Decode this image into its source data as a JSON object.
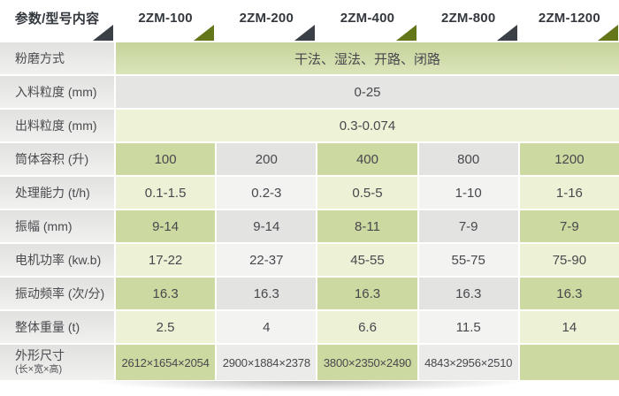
{
  "table": {
    "header": {
      "param_label": "参数/型号内容",
      "models": [
        "2ZM-100",
        "2ZM-200",
        "2ZM-400",
        "2ZM-800",
        "2ZM-1200"
      ]
    },
    "span_rows": {
      "grinding": {
        "label": "粉磨方式",
        "value": "干法、湿法、开路、闭路"
      },
      "feed_size": {
        "label": "入料粒度 (mm)",
        "value": "0-25"
      },
      "discharge_size": {
        "label": "出料粒度 (mm)",
        "value": "0.3-0.074"
      }
    },
    "data_rows": {
      "volume": {
        "label": "筒体容积 (升)",
        "values": [
          "100",
          "200",
          "400",
          "800",
          "1200"
        ]
      },
      "capacity": {
        "label": "处理能力 (t/h)",
        "values": [
          "0.1-1.5",
          "0.2-3",
          "0.5-5",
          "1-10",
          "1-16"
        ]
      },
      "amplitude": {
        "label": "振幅 (mm)",
        "values": [
          "9-14",
          "9-14",
          "8-11",
          "7-9",
          "7-9"
        ]
      },
      "power": {
        "label": "电机功率 (kw.b)",
        "values": [
          "17-22",
          "22-37",
          "45-55",
          "55-75",
          "75-90"
        ]
      },
      "frequency": {
        "label": "振动频率 (次/分)",
        "values": [
          "16.3",
          "16.3",
          "16.3",
          "16.3",
          "16.3"
        ]
      },
      "weight": {
        "label": "整体重量 (t)",
        "values": [
          "2.5",
          "4",
          "6.6",
          "11.5",
          "14"
        ]
      },
      "dimensions": {
        "label": "外形尺寸",
        "label_sub": "(长×宽×高)",
        "values": [
          "2612×1654×2054",
          "2900×1884×2378",
          "3800×2350×2490",
          "4843×2956×2510",
          ""
        ]
      }
    },
    "colors": {
      "green_dark": "#ccd9a0",
      "green_light": "#edf2d6",
      "gray_dark": "#e3e3e1",
      "gray_light": "#f3f3f1",
      "triangle_dark": "#3a4046",
      "triangle_olive": "#64761a"
    }
  }
}
